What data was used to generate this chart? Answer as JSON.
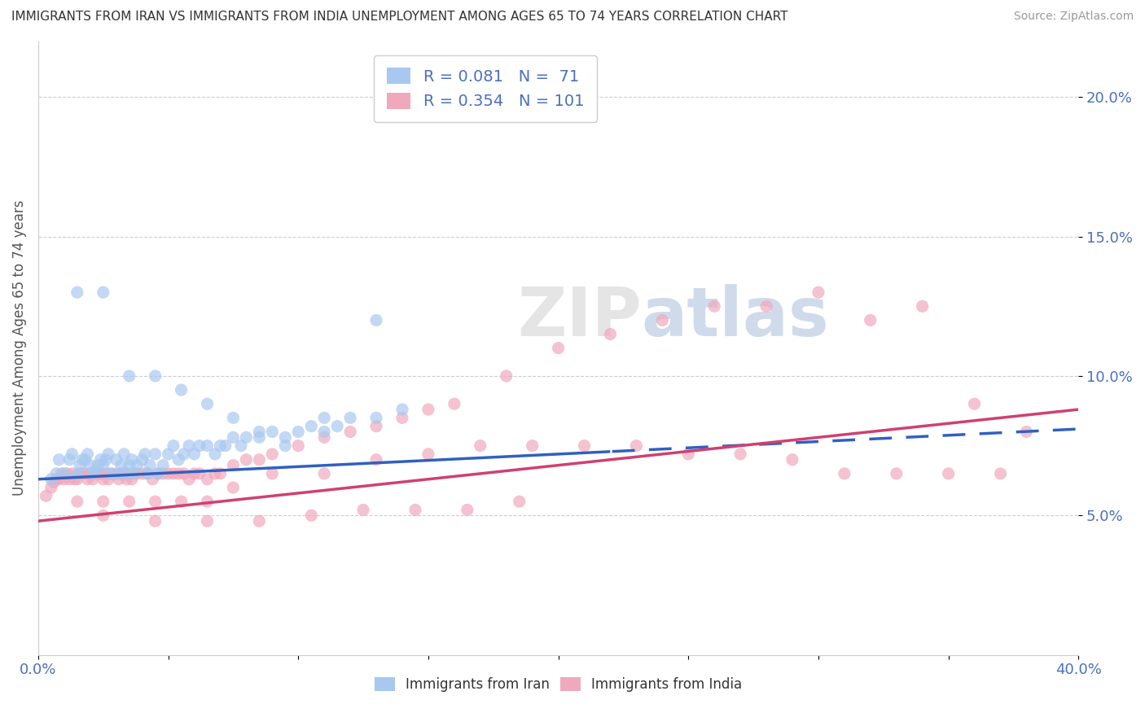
{
  "title": "IMMIGRANTS FROM IRAN VS IMMIGRANTS FROM INDIA UNEMPLOYMENT AMONG AGES 65 TO 74 YEARS CORRELATION CHART",
  "source": "Source: ZipAtlas.com",
  "ylabel": "Unemployment Among Ages 65 to 74 years",
  "iran_R": 0.081,
  "iran_N": 71,
  "india_R": 0.354,
  "india_N": 101,
  "iran_color": "#a8c8f0",
  "india_color": "#f0a8bc",
  "iran_line_color": "#3060c0",
  "india_line_color": "#d04070",
  "watermark": "ZIPatlas",
  "xlim": [
    0.0,
    0.4
  ],
  "ylim": [
    0.0,
    0.22
  ],
  "ytick_vals": [
    0.05,
    0.1,
    0.15,
    0.2
  ],
  "ytick_labels": [
    "5.0%",
    "10.0%",
    "15.0%",
    "20.0%"
  ],
  "xtick_show": [
    "0.0%",
    "40.0%"
  ],
  "iran_scatter_x": [
    0.005,
    0.007,
    0.008,
    0.01,
    0.012,
    0.013,
    0.015,
    0.016,
    0.017,
    0.018,
    0.019,
    0.02,
    0.021,
    0.022,
    0.023,
    0.024,
    0.025,
    0.026,
    0.027,
    0.028,
    0.03,
    0.031,
    0.032,
    0.033,
    0.034,
    0.035,
    0.036,
    0.037,
    0.038,
    0.04,
    0.041,
    0.042,
    0.043,
    0.045,
    0.046,
    0.048,
    0.05,
    0.052,
    0.054,
    0.056,
    0.058,
    0.06,
    0.062,
    0.065,
    0.068,
    0.07,
    0.072,
    0.075,
    0.078,
    0.08,
    0.085,
    0.09,
    0.095,
    0.1,
    0.105,
    0.11,
    0.115,
    0.12,
    0.13,
    0.14,
    0.015,
    0.025,
    0.035,
    0.045,
    0.055,
    0.065,
    0.075,
    0.085,
    0.095,
    0.11,
    0.13
  ],
  "iran_scatter_y": [
    0.063,
    0.065,
    0.07,
    0.065,
    0.07,
    0.072,
    0.065,
    0.068,
    0.07,
    0.07,
    0.072,
    0.068,
    0.065,
    0.066,
    0.068,
    0.07,
    0.068,
    0.07,
    0.072,
    0.065,
    0.07,
    0.065,
    0.068,
    0.072,
    0.065,
    0.068,
    0.07,
    0.065,
    0.068,
    0.07,
    0.072,
    0.065,
    0.068,
    0.072,
    0.065,
    0.068,
    0.072,
    0.075,
    0.07,
    0.072,
    0.075,
    0.072,
    0.075,
    0.075,
    0.072,
    0.075,
    0.075,
    0.078,
    0.075,
    0.078,
    0.078,
    0.08,
    0.078,
    0.08,
    0.082,
    0.08,
    0.082,
    0.085,
    0.085,
    0.088,
    0.13,
    0.13,
    0.1,
    0.1,
    0.095,
    0.09,
    0.085,
    0.08,
    0.075,
    0.085,
    0.12
  ],
  "india_scatter_x": [
    0.003,
    0.005,
    0.006,
    0.007,
    0.008,
    0.009,
    0.01,
    0.011,
    0.012,
    0.013,
    0.014,
    0.015,
    0.016,
    0.017,
    0.018,
    0.019,
    0.02,
    0.021,
    0.022,
    0.023,
    0.024,
    0.025,
    0.026,
    0.027,
    0.028,
    0.03,
    0.031,
    0.032,
    0.033,
    0.034,
    0.035,
    0.036,
    0.038,
    0.04,
    0.042,
    0.044,
    0.046,
    0.048,
    0.05,
    0.052,
    0.054,
    0.056,
    0.058,
    0.06,
    0.062,
    0.065,
    0.068,
    0.07,
    0.075,
    0.08,
    0.085,
    0.09,
    0.1,
    0.11,
    0.12,
    0.13,
    0.14,
    0.15,
    0.16,
    0.18,
    0.2,
    0.22,
    0.24,
    0.26,
    0.28,
    0.3,
    0.32,
    0.34,
    0.36,
    0.38,
    0.015,
    0.025,
    0.035,
    0.045,
    0.055,
    0.065,
    0.075,
    0.09,
    0.11,
    0.13,
    0.15,
    0.17,
    0.19,
    0.21,
    0.23,
    0.25,
    0.27,
    0.29,
    0.31,
    0.33,
    0.35,
    0.37,
    0.025,
    0.045,
    0.065,
    0.085,
    0.105,
    0.125,
    0.145,
    0.165,
    0.185
  ],
  "india_scatter_y": [
    0.057,
    0.06,
    0.062,
    0.063,
    0.063,
    0.065,
    0.063,
    0.065,
    0.063,
    0.065,
    0.063,
    0.063,
    0.065,
    0.065,
    0.065,
    0.063,
    0.065,
    0.063,
    0.065,
    0.065,
    0.065,
    0.063,
    0.065,
    0.063,
    0.065,
    0.065,
    0.063,
    0.065,
    0.065,
    0.063,
    0.065,
    0.063,
    0.065,
    0.065,
    0.065,
    0.063,
    0.065,
    0.065,
    0.065,
    0.065,
    0.065,
    0.065,
    0.063,
    0.065,
    0.065,
    0.063,
    0.065,
    0.065,
    0.068,
    0.07,
    0.07,
    0.072,
    0.075,
    0.078,
    0.08,
    0.082,
    0.085,
    0.088,
    0.09,
    0.1,
    0.11,
    0.115,
    0.12,
    0.125,
    0.125,
    0.13,
    0.12,
    0.125,
    0.09,
    0.08,
    0.055,
    0.055,
    0.055,
    0.055,
    0.055,
    0.055,
    0.06,
    0.065,
    0.065,
    0.07,
    0.072,
    0.075,
    0.075,
    0.075,
    0.075,
    0.072,
    0.072,
    0.07,
    0.065,
    0.065,
    0.065,
    0.065,
    0.05,
    0.048,
    0.048,
    0.048,
    0.05,
    0.052,
    0.052,
    0.052,
    0.055
  ]
}
